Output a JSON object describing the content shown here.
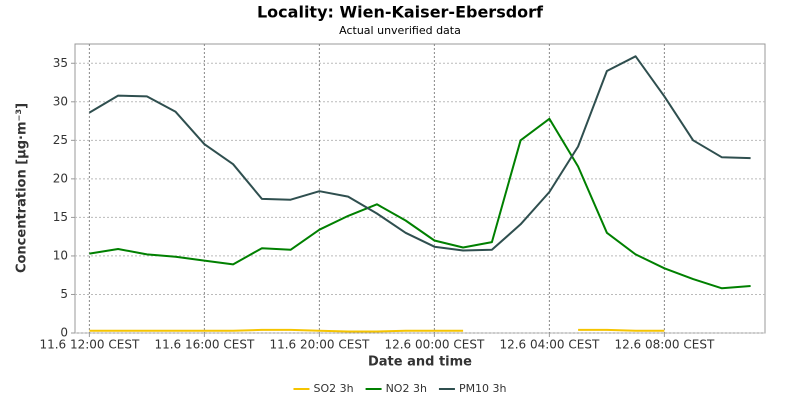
{
  "chart_data": {
    "type": "line",
    "title": "Locality: Wien-Kaiser-Ebersdorf",
    "subtitle": "Actual unverified data",
    "x_label": "Date and time",
    "y_label": "Concentration [µg·m⁻³]",
    "x": [
      0,
      1,
      2,
      3,
      4,
      5,
      6,
      7,
      8,
      9,
      10,
      11,
      12,
      13,
      14,
      15,
      16,
      17,
      18,
      19,
      20,
      21,
      22,
      23
    ],
    "xlim": [
      -0.5,
      23.5
    ],
    "xticks": [
      {
        "value": 0,
        "label": "11.6 12:00 CEST"
      },
      {
        "value": 4,
        "label": "11.6 16:00 CEST"
      },
      {
        "value": 8,
        "label": "11.6 20:00 CEST"
      },
      {
        "value": 12,
        "label": "12.6 00:00 CEST"
      },
      {
        "value": 16,
        "label": "12.6 04:00 CEST"
      },
      {
        "value": 20,
        "label": "12.6 08:00 CEST"
      }
    ],
    "ylim": [
      0,
      37.5
    ],
    "yticks": [
      0,
      5,
      10,
      15,
      20,
      25,
      30,
      35
    ],
    "grid": true,
    "legend": "bottom",
    "series": [
      {
        "name": "SO2 3h",
        "color": "#f5c400",
        "values": [
          0.3,
          0.3,
          0.3,
          0.3,
          0.3,
          0.3,
          0.4,
          0.4,
          0.3,
          0.2,
          0.2,
          0.3,
          0.3,
          0.3,
          null,
          null,
          null,
          0.4,
          0.4,
          0.3,
          0.3,
          null,
          null,
          null
        ]
      },
      {
        "name": "NO2 3h",
        "color": "#008000",
        "values": [
          10.3,
          10.9,
          10.2,
          9.9,
          9.4,
          8.9,
          11.0,
          10.8,
          13.4,
          15.2,
          16.7,
          14.6,
          12.0,
          11.1,
          11.8,
          25.0,
          27.8,
          21.6,
          13.0,
          10.2,
          8.4,
          7.0,
          5.8,
          6.1
        ]
      },
      {
        "name": "PM10 3h",
        "color": "#2f4f4f",
        "values": [
          28.6,
          30.8,
          30.7,
          28.7,
          24.5,
          21.9,
          17.4,
          17.3,
          18.4,
          17.7,
          15.5,
          13.0,
          11.2,
          10.7,
          10.8,
          14.1,
          18.3,
          24.2,
          34.0,
          35.9,
          30.7,
          25.0,
          22.8,
          22.7
        ]
      }
    ]
  }
}
